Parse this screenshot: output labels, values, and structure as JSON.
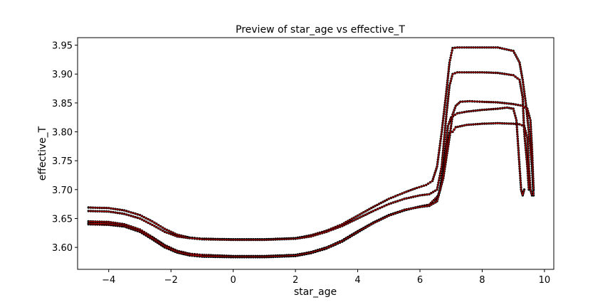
{
  "chart_data": {
    "type": "line",
    "title": "Preview of star_age vs effective_T",
    "xlabel": "star_age",
    "ylabel": "effective_T",
    "xlim": [
      -5.0,
      10.3
    ],
    "ylim": [
      3.562,
      3.963
    ],
    "xticks": [
      -4,
      -2,
      0,
      2,
      4,
      6,
      8,
      10
    ],
    "yticks": [
      3.6,
      3.65,
      3.7,
      3.75,
      3.8,
      3.85,
      3.9,
      3.95
    ],
    "xtick_labels": [
      "−4",
      "−2",
      "0",
      "2",
      "4",
      "6",
      "8",
      "10"
    ],
    "ytick_labels": [
      "3.60",
      "3.65",
      "3.70",
      "3.75",
      "3.80",
      "3.85",
      "3.90",
      "3.95"
    ],
    "grid": false,
    "legend": "none",
    "line_color": "#ff0000",
    "marker_color": "#000000",
    "series": [
      {
        "x": [
          -4.65,
          -4.0,
          -3.5,
          -3.0,
          -2.6,
          -2.2,
          -1.8,
          -1.4,
          -1.0,
          0.0,
          1.0,
          2.0,
          2.5,
          3.0,
          3.5,
          4.0,
          4.5,
          5.0,
          5.5,
          6.0,
          6.3,
          6.5,
          6.65,
          6.8,
          6.9,
          7.0,
          7.2,
          7.5,
          8.0,
          8.5,
          8.8,
          9.0,
          9.1,
          9.2,
          9.25,
          9.3,
          9.35
        ],
        "y": [
          3.645,
          3.644,
          3.64,
          3.631,
          3.618,
          3.604,
          3.594,
          3.589,
          3.587,
          3.585,
          3.585,
          3.587,
          3.592,
          3.6,
          3.612,
          3.628,
          3.643,
          3.656,
          3.665,
          3.67,
          3.672,
          3.678,
          3.7,
          3.76,
          3.81,
          3.825,
          3.832,
          3.835,
          3.838,
          3.84,
          3.842,
          3.84,
          3.82,
          3.74,
          3.7,
          3.69,
          3.7
        ]
      },
      {
        "x": [
          -4.65,
          -4.0,
          -3.5,
          -3.0,
          -2.6,
          -2.2,
          -1.8,
          -1.4,
          -1.0,
          0.0,
          1.0,
          2.0,
          2.5,
          3.0,
          3.5,
          4.0,
          4.5,
          5.0,
          5.5,
          6.0,
          6.3,
          6.6,
          6.75,
          6.85,
          6.95,
          7.05,
          7.15,
          7.5,
          8.0,
          8.5,
          9.0,
          9.2,
          9.35,
          9.45,
          9.5,
          9.55,
          9.6
        ],
        "y": [
          3.64,
          3.639,
          3.636,
          3.627,
          3.614,
          3.6,
          3.591,
          3.586,
          3.584,
          3.583,
          3.583,
          3.585,
          3.59,
          3.598,
          3.61,
          3.626,
          3.642,
          3.655,
          3.664,
          3.671,
          3.674,
          3.69,
          3.73,
          3.77,
          3.798,
          3.8,
          3.808,
          3.812,
          3.814,
          3.815,
          3.814,
          3.813,
          3.81,
          3.79,
          3.74,
          3.7,
          3.69
        ]
      },
      {
        "x": [
          -4.65,
          -4.0,
          -3.5,
          -3.0,
          -2.6,
          -2.2,
          -1.8,
          -1.4,
          -1.0,
          0.0,
          1.0,
          2.0,
          2.5,
          3.0,
          3.5,
          4.0,
          4.5,
          5.0,
          5.5,
          5.9,
          6.2,
          6.4,
          6.55,
          6.7,
          6.85,
          6.95,
          7.05,
          7.2,
          7.5,
          8.0,
          8.5,
          9.0,
          9.2,
          9.3,
          9.4,
          9.5,
          9.6,
          9.65
        ],
        "y": [
          3.669,
          3.668,
          3.664,
          3.656,
          3.645,
          3.632,
          3.622,
          3.617,
          3.615,
          3.614,
          3.614,
          3.616,
          3.621,
          3.629,
          3.64,
          3.655,
          3.67,
          3.684,
          3.695,
          3.703,
          3.708,
          3.715,
          3.74,
          3.8,
          3.87,
          3.92,
          3.945,
          3.946,
          3.946,
          3.946,
          3.946,
          3.94,
          3.92,
          3.89,
          3.85,
          3.8,
          3.74,
          3.69
        ]
      },
      {
        "x": [
          -4.65,
          -4.0,
          -3.5,
          -3.0,
          -2.6,
          -2.2,
          -1.8,
          -1.4,
          -1.0,
          0.0,
          1.0,
          2.0,
          2.5,
          3.0,
          3.5,
          4.0,
          4.5,
          5.0,
          5.5,
          6.0,
          6.3,
          6.55,
          6.7,
          6.85,
          6.95,
          7.05,
          7.2,
          7.5,
          8.0,
          8.5,
          9.0,
          9.2,
          9.3,
          9.35,
          9.45,
          9.5
        ],
        "y": [
          3.663,
          3.662,
          3.658,
          3.65,
          3.639,
          3.627,
          3.619,
          3.616,
          3.614,
          3.613,
          3.613,
          3.615,
          3.619,
          3.627,
          3.637,
          3.65,
          3.663,
          3.675,
          3.684,
          3.69,
          3.692,
          3.7,
          3.74,
          3.83,
          3.88,
          3.9,
          3.903,
          3.903,
          3.903,
          3.902,
          3.898,
          3.89,
          3.86,
          3.8,
          3.74,
          3.7
        ]
      },
      {
        "x": [
          -4.65,
          -4.0,
          -3.5,
          -3.0,
          -2.6,
          -2.2,
          -1.8,
          -1.4,
          -1.0,
          0.0,
          1.0,
          2.0,
          2.5,
          3.0,
          3.5,
          4.0,
          4.5,
          5.0,
          5.5,
          6.0,
          6.3,
          6.55,
          6.75,
          6.95,
          7.05,
          7.15,
          7.3,
          7.6,
          8.0,
          8.5,
          9.0,
          9.3,
          9.45,
          9.55,
          9.6,
          9.65
        ],
        "y": [
          3.642,
          3.641,
          3.637,
          3.628,
          3.616,
          3.602,
          3.592,
          3.587,
          3.585,
          3.584,
          3.584,
          3.586,
          3.591,
          3.599,
          3.611,
          3.627,
          3.642,
          3.655,
          3.665,
          3.67,
          3.672,
          3.68,
          3.72,
          3.79,
          3.83,
          3.845,
          3.852,
          3.853,
          3.852,
          3.851,
          3.848,
          3.845,
          3.84,
          3.82,
          3.77,
          3.7
        ]
      }
    ]
  }
}
